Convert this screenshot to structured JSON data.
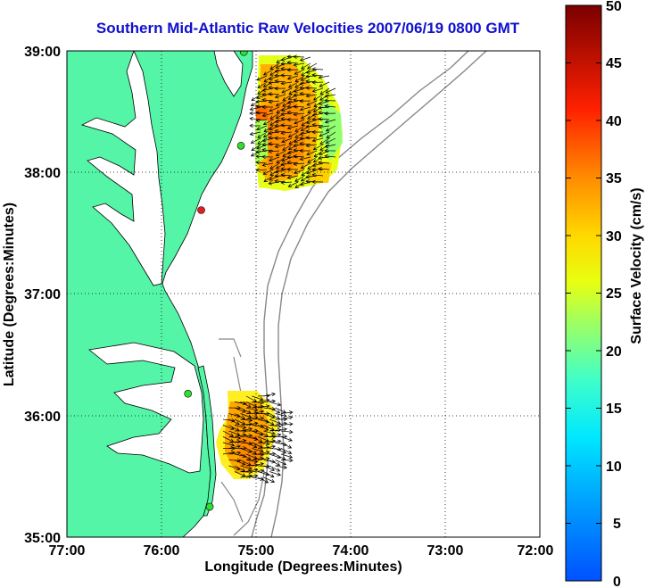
{
  "title": "Southern Mid-Atlantic Raw Velocities 2007/06/19 0800 GMT",
  "map": {
    "x_axis": {
      "label": "Longitude (Degrees:Minutes)",
      "ticks": [
        "77:00",
        "76:00",
        "75:00",
        "74:00",
        "73:00",
        "72:00"
      ],
      "range_deg_west": [
        77,
        72
      ]
    },
    "y_axis": {
      "label": "Latitude (Degrees:Minutes)",
      "ticks": [
        "39:00",
        "38:00",
        "37:00",
        "36:00",
        "35:00"
      ],
      "range_deg_north": [
        35,
        39
      ]
    },
    "grid": "dotted",
    "land_color": "#55f5a8",
    "radar_sites": [
      {
        "lon": 75.13,
        "lat": 38.99,
        "status": "green"
      },
      {
        "lon": 75.16,
        "lat": 38.22,
        "status": "green"
      },
      {
        "lon": 75.58,
        "lat": 37.69,
        "status": "red"
      },
      {
        "lon": 75.72,
        "lat": 36.18,
        "status": "green"
      },
      {
        "lon": 75.49,
        "lat": 35.25,
        "status": "green"
      }
    ]
  },
  "colorbar": {
    "label": "Surface Velocity (cm/s)",
    "ticks": [
      "50",
      "45",
      "40",
      "35",
      "30",
      "25",
      "20",
      "15",
      "10",
      "5",
      "0"
    ],
    "range": [
      0,
      50
    ]
  }
}
